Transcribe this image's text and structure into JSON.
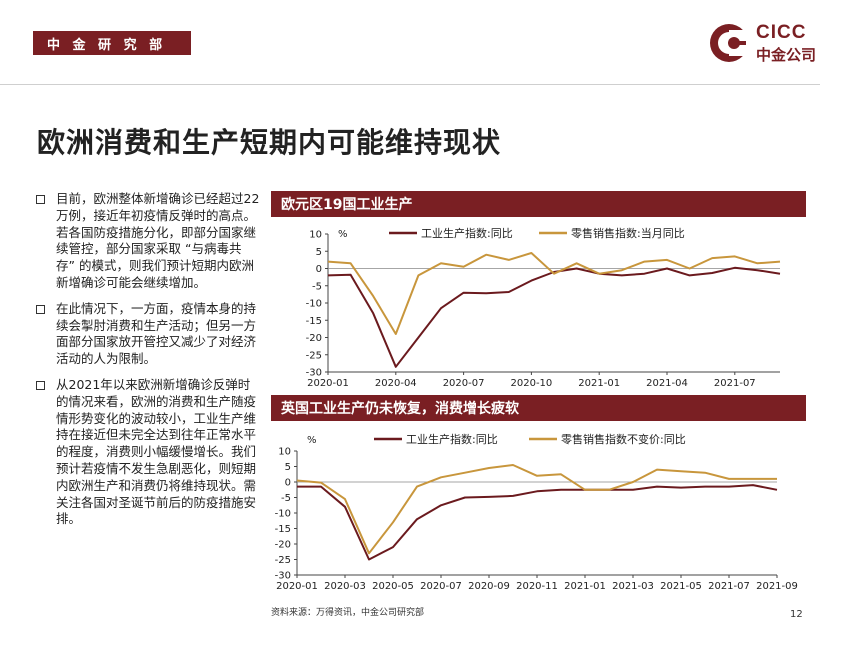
{
  "header": {
    "dept": "中 金 研 究 部",
    "logo_en": "CICC",
    "logo_cn": "中金公司",
    "brand_color": "#7a1f23"
  },
  "title": "欧洲消费和生产短期内可能维持现状",
  "bullets": [
    "目前，欧洲整体新增确诊已经超过22万例，接近年初疫情反弹时的高点。若各国防疫措施分化，即部分国家继续管控，部分国家采取 “与病毒共存” 的模式，则我们预计短期内欧洲新增确诊可能会继续增加。",
    "在此情况下，一方面，疫情本身的持续会掣肘消费和生产活动；但另一方面部分国家放开管控又减少了对经济活动的人为限制。",
    "从2021年以来欧洲新增确诊反弹时的情况来看，欧洲的消费和生产随疫情形势变化的波动较小，工业生产维持在接近但未完全达到往年正常水平的程度，消费则小幅缓慢增长。我们预计若疫情不发生急剧恶化，则短期内欧洲生产和消费仍将维持现状。需关注各国对圣诞节前后的防疫措施安排。"
  ],
  "source": "资料来源：万得资讯，中金公司研究部",
  "page_number": "12",
  "chart_data": [
    {
      "type": "line",
      "title": "欧元区19国工业生产",
      "ylabel": "%",
      "ylim": [
        -30,
        10
      ],
      "yticks": [
        10,
        5,
        0,
        -5,
        -10,
        -15,
        -20,
        -25,
        -30
      ],
      "xticklabels": [
        "2020-01",
        "2020-04",
        "2020-07",
        "2020-10",
        "2021-01",
        "2021-04",
        "2021-07"
      ],
      "x": [
        "2020-01",
        "2020-02",
        "2020-03",
        "2020-04",
        "2020-05",
        "2020-06",
        "2020-07",
        "2020-08",
        "2020-09",
        "2020-10",
        "2020-11",
        "2020-12",
        "2021-01",
        "2021-02",
        "2021-03",
        "2021-04",
        "2021-05",
        "2021-06",
        "2021-07",
        "2021-08",
        "2021-09"
      ],
      "series": [
        {
          "name": "工业生产指数:同比",
          "color": "#6b1a1e",
          "values": [
            -2,
            -1.8,
            -13,
            -28.5,
            -20,
            -11.5,
            -7,
            -7.2,
            -6.8,
            -3.5,
            -1,
            0,
            -1.5,
            -2,
            -1.5,
            0,
            -2,
            -1.3,
            0.2,
            -0.5,
            -1.5
          ]
        },
        {
          "name": "零售销售指数:当月同比",
          "color": "#c8963c",
          "values": [
            2,
            1.5,
            -8,
            -19,
            -2,
            1.5,
            0.5,
            4,
            2.5,
            4.5,
            -1.5,
            1.5,
            -1.5,
            -0.5,
            2,
            2.5,
            0,
            3,
            3.5,
            1.5,
            2
          ]
        }
      ]
    },
    {
      "type": "line",
      "title": "英国工业生产仍未恢复，消费增长疲软",
      "ylabel": "%",
      "ylim": [
        -30,
        10
      ],
      "yticks": [
        10,
        5,
        0,
        -5,
        -10,
        -15,
        -20,
        -25,
        -30
      ],
      "xticklabels": [
        "2020-01",
        "2020-03",
        "2020-05",
        "2020-07",
        "2020-09",
        "2020-11",
        "2021-01",
        "2021-03",
        "2021-05",
        "2021-07",
        "2021-09"
      ],
      "x": [
        "2020-01",
        "2020-02",
        "2020-03",
        "2020-04",
        "2020-05",
        "2020-06",
        "2020-07",
        "2020-08",
        "2020-09",
        "2020-10",
        "2020-11",
        "2020-12",
        "2021-01",
        "2021-02",
        "2021-03",
        "2021-04",
        "2021-05",
        "2021-06",
        "2021-07",
        "2021-08",
        "2021-09"
      ],
      "series": [
        {
          "name": "工业生产指数:同比",
          "color": "#6b1a1e",
          "values": [
            -1.5,
            -1.5,
            -8,
            -25,
            -21,
            -12,
            -7.5,
            -5,
            -4.8,
            -4.5,
            -3,
            -2.5,
            -2.5,
            -2.5,
            -2.5,
            -1.5,
            -1.8,
            -1.5,
            -1.5,
            -1,
            -2.5
          ]
        },
        {
          "name": "零售销售指数不变价:同比",
          "color": "#c8963c",
          "values": [
            0.5,
            -0.2,
            -5.5,
            -23,
            -13,
            -1.5,
            1.5,
            3,
            4.5,
            5.5,
            2,
            2.5,
            -2.5,
            -2.5,
            0,
            4,
            3.5,
            3,
            1,
            1,
            1
          ]
        }
      ]
    }
  ]
}
